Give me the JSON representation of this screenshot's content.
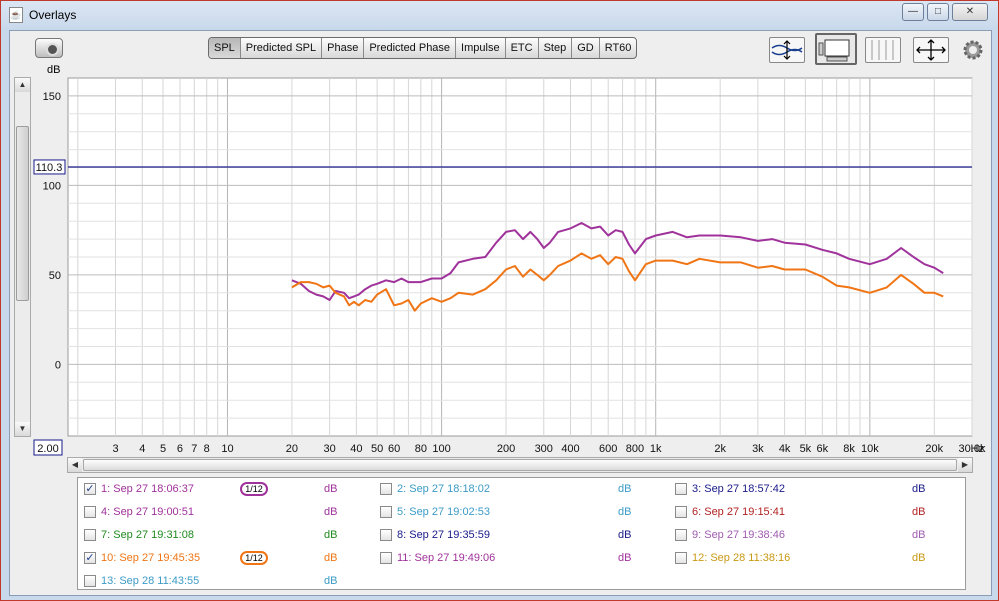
{
  "window": {
    "title": "Overlays",
    "app_icon": "java-icon",
    "controls": {
      "minimize": "—",
      "maximize": "□",
      "close": "✕"
    }
  },
  "toolbar": {
    "tabs": [
      "SPL",
      "Predicted SPL",
      "Phase",
      "Predicted Phase",
      "Impulse",
      "ETC",
      "Step",
      "GD",
      "RT60"
    ],
    "active": "SPL"
  },
  "plot": {
    "y_unit": "dB",
    "marker_value": "110.3",
    "x_min_box": "2.00",
    "x_unit": "Hz"
  },
  "chart_data": {
    "type": "line",
    "xscale": "log",
    "xlim": [
      1.8,
      30000
    ],
    "ylim": [
      -40,
      160
    ],
    "yticks": [
      150,
      100,
      50,
      0
    ],
    "xtick_labels": [
      {
        "v": 3,
        "t": "3"
      },
      {
        "v": 4,
        "t": "4"
      },
      {
        "v": 5,
        "t": "5"
      },
      {
        "v": 6,
        "t": "6"
      },
      {
        "v": 7,
        "t": "7"
      },
      {
        "v": 8,
        "t": "8"
      },
      {
        "v": 10,
        "t": "10"
      },
      {
        "v": 20,
        "t": "20"
      },
      {
        "v": 30,
        "t": "30"
      },
      {
        "v": 40,
        "t": "40"
      },
      {
        "v": 50,
        "t": "50"
      },
      {
        "v": 60,
        "t": "60"
      },
      {
        "v": 80,
        "t": "80"
      },
      {
        "v": 100,
        "t": "100"
      },
      {
        "v": 200,
        "t": "200"
      },
      {
        "v": 300,
        "t": "300"
      },
      {
        "v": 400,
        "t": "400"
      },
      {
        "v": 600,
        "t": "600"
      },
      {
        "v": 800,
        "t": "800"
      },
      {
        "v": 1000,
        "t": "1k"
      },
      {
        "v": 2000,
        "t": "2k"
      },
      {
        "v": 3000,
        "t": "3k"
      },
      {
        "v": 4000,
        "t": "4k"
      },
      {
        "v": 5000,
        "t": "5k"
      },
      {
        "v": 6000,
        "t": "6k"
      },
      {
        "v": 8000,
        "t": "8k"
      },
      {
        "v": 10000,
        "t": "10k"
      },
      {
        "v": 20000,
        "t": "20k"
      },
      {
        "v": 30000,
        "t": "30.0k"
      }
    ],
    "marker_line": 110.3,
    "series": [
      {
        "name": "1: Sep 27 18:06:37",
        "color": "#a0329b",
        "points": [
          [
            20,
            47
          ],
          [
            22,
            45
          ],
          [
            24,
            41
          ],
          [
            26,
            39
          ],
          [
            28,
            38
          ],
          [
            30,
            36
          ],
          [
            32,
            41
          ],
          [
            35,
            40
          ],
          [
            37,
            37
          ],
          [
            39,
            38
          ],
          [
            41,
            39
          ],
          [
            44,
            42
          ],
          [
            47,
            44
          ],
          [
            50,
            45
          ],
          [
            55,
            47
          ],
          [
            60,
            46
          ],
          [
            65,
            48
          ],
          [
            70,
            46
          ],
          [
            80,
            46
          ],
          [
            90,
            48
          ],
          [
            100,
            48
          ],
          [
            110,
            51
          ],
          [
            120,
            57
          ],
          [
            140,
            59
          ],
          [
            160,
            60
          ],
          [
            180,
            68
          ],
          [
            200,
            74
          ],
          [
            220,
            75
          ],
          [
            240,
            70
          ],
          [
            260,
            74
          ],
          [
            280,
            70
          ],
          [
            300,
            65
          ],
          [
            320,
            68
          ],
          [
            350,
            74
          ],
          [
            400,
            76
          ],
          [
            450,
            79
          ],
          [
            500,
            76
          ],
          [
            550,
            77
          ],
          [
            600,
            72
          ],
          [
            650,
            75
          ],
          [
            700,
            74
          ],
          [
            750,
            67
          ],
          [
            800,
            62
          ],
          [
            900,
            70
          ],
          [
            1000,
            72
          ],
          [
            1200,
            74
          ],
          [
            1400,
            71
          ],
          [
            1600,
            72
          ],
          [
            2000,
            72
          ],
          [
            2500,
            71
          ],
          [
            3000,
            69
          ],
          [
            3500,
            70
          ],
          [
            4000,
            68
          ],
          [
            5000,
            67
          ],
          [
            6000,
            64
          ],
          [
            7000,
            62
          ],
          [
            8000,
            59
          ],
          [
            10000,
            56
          ],
          [
            12000,
            59
          ],
          [
            14000,
            65
          ],
          [
            16000,
            60
          ],
          [
            18000,
            56
          ],
          [
            20000,
            54
          ],
          [
            22000,
            51
          ]
        ]
      },
      {
        "name": "10: Sep 27 19:45:35",
        "color": "#f07515",
        "points": [
          [
            20,
            43
          ],
          [
            22,
            46
          ],
          [
            24,
            46
          ],
          [
            26,
            45
          ],
          [
            28,
            43
          ],
          [
            30,
            44
          ],
          [
            32,
            40
          ],
          [
            35,
            38
          ],
          [
            37,
            33
          ],
          [
            39,
            35
          ],
          [
            41,
            33
          ],
          [
            44,
            36
          ],
          [
            47,
            35
          ],
          [
            50,
            39
          ],
          [
            55,
            42
          ],
          [
            60,
            33
          ],
          [
            65,
            34
          ],
          [
            70,
            36
          ],
          [
            75,
            30
          ],
          [
            80,
            34
          ],
          [
            90,
            37
          ],
          [
            100,
            35
          ],
          [
            110,
            37
          ],
          [
            120,
            40
          ],
          [
            140,
            39
          ],
          [
            160,
            42
          ],
          [
            180,
            47
          ],
          [
            200,
            53
          ],
          [
            220,
            55
          ],
          [
            240,
            49
          ],
          [
            260,
            53
          ],
          [
            280,
            50
          ],
          [
            300,
            47
          ],
          [
            320,
            50
          ],
          [
            350,
            55
          ],
          [
            400,
            58
          ],
          [
            450,
            62
          ],
          [
            500,
            59
          ],
          [
            550,
            61
          ],
          [
            600,
            56
          ],
          [
            650,
            60
          ],
          [
            700,
            59
          ],
          [
            750,
            52
          ],
          [
            800,
            47
          ],
          [
            900,
            56
          ],
          [
            1000,
            58
          ],
          [
            1200,
            58
          ],
          [
            1400,
            56
          ],
          [
            1600,
            59
          ],
          [
            2000,
            57
          ],
          [
            2500,
            57
          ],
          [
            3000,
            54
          ],
          [
            3500,
            55
          ],
          [
            4000,
            53
          ],
          [
            5000,
            53
          ],
          [
            6000,
            49
          ],
          [
            7000,
            44
          ],
          [
            8000,
            43
          ],
          [
            10000,
            40
          ],
          [
            12000,
            43
          ],
          [
            14000,
            50
          ],
          [
            16000,
            45
          ],
          [
            18000,
            40
          ],
          [
            20000,
            40
          ],
          [
            22000,
            38
          ]
        ]
      }
    ]
  },
  "legend": {
    "entries": [
      {
        "label": "1: Sep 27 18:06:37",
        "checked": true,
        "color": "#a0329b",
        "unit": "dB",
        "smoothing": "1/12"
      },
      {
        "label": "2: Sep 27 18:18:02",
        "checked": false,
        "color": "#3b9bc6",
        "unit": "dB"
      },
      {
        "label": "3: Sep 27 18:57:42",
        "checked": false,
        "color": "#1a1a8a",
        "unit": "dB"
      },
      {
        "label": "4: Sep 27 19:00:51",
        "checked": false,
        "color": "#a0329b",
        "unit": "dB"
      },
      {
        "label": "5: Sep 27 19:02:53",
        "checked": false,
        "color": "#3b9bc6",
        "unit": "dB"
      },
      {
        "label": "6: Sep 27 19:15:41",
        "checked": false,
        "color": "#b22222",
        "unit": "dB"
      },
      {
        "label": "7: Sep 27 19:31:08",
        "checked": false,
        "color": "#1f8a1f",
        "unit": "dB"
      },
      {
        "label": "8: Sep 27 19:35:59",
        "checked": false,
        "color": "#1a1a8a",
        "unit": "dB"
      },
      {
        "label": "9: Sep 27 19:38:46",
        "checked": false,
        "color": "#a05bb0",
        "unit": "dB"
      },
      {
        "label": "10: Sep 27 19:45:35",
        "checked": true,
        "color": "#f07515",
        "unit": "dB",
        "smoothing": "1/12"
      },
      {
        "label": "11: Sep 27 19:49:06",
        "checked": false,
        "color": "#a0329b",
        "unit": "dB"
      },
      {
        "label": "12: Sep 28 11:38:16",
        "checked": false,
        "color": "#c99a14",
        "unit": "dB"
      },
      {
        "label": "13: Sep 28 11:43:55",
        "checked": false,
        "color": "#3b9bc6",
        "unit": "dB"
      }
    ]
  }
}
